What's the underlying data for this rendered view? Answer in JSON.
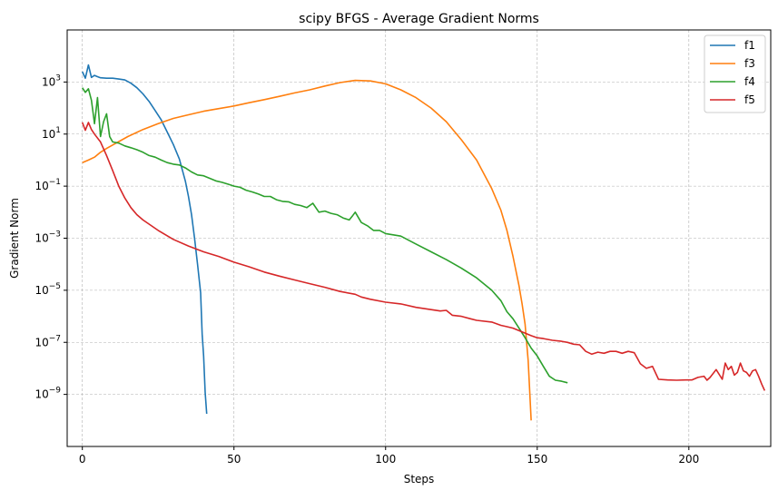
{
  "chart_data": {
    "type": "line",
    "title": "scipy BFGS - Average Gradient Norms",
    "xlabel": "Steps",
    "ylabel": "Gradient Norm",
    "xlim": [
      -5,
      227
    ],
    "ylim": [
      1e-11,
      100000.0
    ],
    "yscale": "log",
    "grid": true,
    "legend_position": "top-right",
    "x_ticks": [
      {
        "value": 0,
        "label": "0"
      },
      {
        "value": 50,
        "label": "50"
      },
      {
        "value": 100,
        "label": "100"
      },
      {
        "value": 150,
        "label": "150"
      },
      {
        "value": 200,
        "label": "200"
      }
    ],
    "y_ticks": [
      {
        "exp": 3,
        "base": "10",
        "sup": "3"
      },
      {
        "exp": 1,
        "base": "10",
        "sup": "1"
      },
      {
        "exp": -1,
        "base": "10",
        "sup": "−1"
      },
      {
        "exp": -3,
        "base": "10",
        "sup": "−3"
      },
      {
        "exp": -5,
        "base": "10",
        "sup": "−5"
      },
      {
        "exp": -7,
        "base": "10",
        "sup": "−7"
      },
      {
        "exp": -9,
        "base": "10",
        "sup": "−9"
      }
    ],
    "series": [
      {
        "name": "f1",
        "color": "#1f77b4",
        "points": [
          [
            0,
            2500
          ],
          [
            1,
            1400
          ],
          [
            2,
            4500
          ],
          [
            3,
            1500
          ],
          [
            4,
            1800
          ],
          [
            5,
            1600
          ],
          [
            6,
            1450
          ],
          [
            8,
            1400
          ],
          [
            10,
            1400
          ],
          [
            12,
            1300
          ],
          [
            14,
            1200
          ],
          [
            16,
            900
          ],
          [
            18,
            600
          ],
          [
            20,
            350
          ],
          [
            22,
            180
          ],
          [
            24,
            80
          ],
          [
            26,
            35
          ],
          [
            28,
            12
          ],
          [
            30,
            4
          ],
          [
            32,
            1.1
          ],
          [
            34,
            0.15
          ],
          [
            35,
            0.04
          ],
          [
            36,
            0.008
          ],
          [
            37,
            0.001
          ],
          [
            38,
            0.0001
          ],
          [
            39,
            8e-06
          ],
          [
            39.5,
            2e-07
          ],
          [
            40,
            3e-08
          ],
          [
            40.5,
            1.2e-09
          ],
          [
            41,
            1.8e-10
          ]
        ]
      },
      {
        "name": "f3",
        "color": "#ff7f0e",
        "points": [
          [
            0,
            0.8
          ],
          [
            2,
            1.0
          ],
          [
            4,
            1.3
          ],
          [
            6,
            2.0
          ],
          [
            8,
            2.8
          ],
          [
            10,
            3.8
          ],
          [
            15,
            8
          ],
          [
            20,
            15
          ],
          [
            25,
            25
          ],
          [
            30,
            40
          ],
          [
            35,
            55
          ],
          [
            40,
            75
          ],
          [
            45,
            95
          ],
          [
            50,
            120
          ],
          [
            55,
            160
          ],
          [
            60,
            210
          ],
          [
            65,
            280
          ],
          [
            70,
            380
          ],
          [
            75,
            500
          ],
          [
            80,
            700
          ],
          [
            85,
            950
          ],
          [
            90,
            1150
          ],
          [
            95,
            1100
          ],
          [
            100,
            850
          ],
          [
            105,
            500
          ],
          [
            110,
            250
          ],
          [
            115,
            100
          ],
          [
            120,
            30
          ],
          [
            125,
            6
          ],
          [
            130,
            1
          ],
          [
            135,
            0.08
          ],
          [
            138,
            0.012
          ],
          [
            140,
            0.002
          ],
          [
            142,
            0.0002
          ],
          [
            144,
            1.5e-05
          ],
          [
            145,
            3e-06
          ],
          [
            146,
            5e-07
          ],
          [
            147,
            2e-08
          ],
          [
            148,
            1e-10
          ]
        ]
      },
      {
        "name": "f4",
        "color": "#2ca02c",
        "points": [
          [
            0,
            600
          ],
          [
            1,
            400
          ],
          [
            2,
            550
          ],
          [
            3,
            200
          ],
          [
            4,
            25
          ],
          [
            5,
            250
          ],
          [
            6,
            8
          ],
          [
            7,
            30
          ],
          [
            8,
            60
          ],
          [
            9,
            8
          ],
          [
            10,
            5
          ],
          [
            12,
            4.5
          ],
          [
            14,
            3.5
          ],
          [
            16,
            3
          ],
          [
            18,
            2.5
          ],
          [
            20,
            2
          ],
          [
            22,
            1.5
          ],
          [
            24,
            1.3
          ],
          [
            26,
            1
          ],
          [
            28,
            0.8
          ],
          [
            30,
            0.7
          ],
          [
            32,
            0.65
          ],
          [
            34,
            0.5
          ],
          [
            36,
            0.35
          ],
          [
            38,
            0.27
          ],
          [
            40,
            0.25
          ],
          [
            42,
            0.2
          ],
          [
            44,
            0.16
          ],
          [
            46,
            0.14
          ],
          [
            48,
            0.12
          ],
          [
            50,
            0.1
          ],
          [
            52,
            0.09
          ],
          [
            54,
            0.07
          ],
          [
            56,
            0.06
          ],
          [
            58,
            0.05
          ],
          [
            60,
            0.04
          ],
          [
            62,
            0.04
          ],
          [
            64,
            0.03
          ],
          [
            66,
            0.026
          ],
          [
            68,
            0.025
          ],
          [
            70,
            0.02
          ],
          [
            72,
            0.018
          ],
          [
            74,
            0.015
          ],
          [
            76,
            0.022
          ],
          [
            78,
            0.01
          ],
          [
            80,
            0.011
          ],
          [
            82,
            0.009
          ],
          [
            84,
            0.008
          ],
          [
            86,
            0.006
          ],
          [
            88,
            0.005
          ],
          [
            89,
            0.007
          ],
          [
            90,
            0.01
          ],
          [
            92,
            0.004
          ],
          [
            94,
            0.003
          ],
          [
            96,
            0.002
          ],
          [
            98,
            0.002
          ],
          [
            100,
            0.0015
          ],
          [
            105,
            0.0012
          ],
          [
            110,
            0.0006
          ],
          [
            115,
            0.0003
          ],
          [
            120,
            0.00015
          ],
          [
            125,
            7e-05
          ],
          [
            130,
            3e-05
          ],
          [
            135,
            1e-05
          ],
          [
            138,
            4e-06
          ],
          [
            140,
            1.5e-06
          ],
          [
            142,
            8e-07
          ],
          [
            144,
            3.5e-07
          ],
          [
            146,
            1.5e-07
          ],
          [
            148,
            6e-08
          ],
          [
            150,
            3e-08
          ],
          [
            152,
            1.2e-08
          ],
          [
            154,
            5e-09
          ],
          [
            156,
            3.5e-09
          ],
          [
            158,
            3.2e-09
          ],
          [
            160,
            2.8e-09
          ]
        ]
      },
      {
        "name": "f5",
        "color": "#d62728",
        "points": [
          [
            0,
            28
          ],
          [
            1,
            14
          ],
          [
            2,
            28
          ],
          [
            3,
            15
          ],
          [
            4,
            10
          ],
          [
            6,
            5
          ],
          [
            8,
            1.5
          ],
          [
            10,
            0.4
          ],
          [
            12,
            0.1
          ],
          [
            14,
            0.035
          ],
          [
            16,
            0.015
          ],
          [
            18,
            0.008
          ],
          [
            20,
            0.005
          ],
          [
            25,
            0.002
          ],
          [
            30,
            0.0009
          ],
          [
            35,
            0.0005
          ],
          [
            40,
            0.0003
          ],
          [
            45,
            0.0002
          ],
          [
            50,
            0.00012
          ],
          [
            55,
            8e-05
          ],
          [
            60,
            5e-05
          ],
          [
            65,
            3.5e-05
          ],
          [
            70,
            2.5e-05
          ],
          [
            75,
            1.8e-05
          ],
          [
            80,
            1.3e-05
          ],
          [
            85,
            9e-06
          ],
          [
            90,
            7e-06
          ],
          [
            92,
            5.5e-06
          ],
          [
            95,
            4.5e-06
          ],
          [
            100,
            3.5e-06
          ],
          [
            105,
            3e-06
          ],
          [
            110,
            2.2e-06
          ],
          [
            115,
            1.8e-06
          ],
          [
            118,
            1.6e-06
          ],
          [
            120,
            1.7e-06
          ],
          [
            122,
            1.1e-06
          ],
          [
            125,
            1e-06
          ],
          [
            128,
            8e-07
          ],
          [
            130,
            7e-07
          ],
          [
            135,
            6e-07
          ],
          [
            138,
            4.5e-07
          ],
          [
            140,
            4e-07
          ],
          [
            142,
            3.5e-07
          ],
          [
            145,
            2.5e-07
          ],
          [
            148,
            1.8e-07
          ],
          [
            150,
            1.5e-07
          ],
          [
            152,
            1.4e-07
          ],
          [
            155,
            1.2e-07
          ],
          [
            158,
            1.1e-07
          ],
          [
            160,
            1e-07
          ],
          [
            162,
            8.5e-08
          ],
          [
            164,
            8e-08
          ],
          [
            166,
            4.5e-08
          ],
          [
            168,
            3.5e-08
          ],
          [
            170,
            4.2e-08
          ],
          [
            172,
            3.8e-08
          ],
          [
            174,
            4.5e-08
          ],
          [
            176,
            4.5e-08
          ],
          [
            178,
            3.8e-08
          ],
          [
            180,
            4.5e-08
          ],
          [
            182,
            4e-08
          ],
          [
            184,
            1.5e-08
          ],
          [
            186,
            1e-08
          ],
          [
            188,
            1.2e-08
          ],
          [
            190,
            3.8e-09
          ],
          [
            193,
            3.6e-09
          ],
          [
            196,
            3.5e-09
          ],
          [
            199,
            3.6e-09
          ],
          [
            201,
            3.6e-09
          ],
          [
            203,
            4.5e-09
          ],
          [
            205,
            5e-09
          ],
          [
            206,
            3.5e-09
          ],
          [
            207,
            4.5e-09
          ],
          [
            209,
            9e-09
          ],
          [
            211,
            3.8e-09
          ],
          [
            212,
            1.6e-08
          ],
          [
            213,
            9e-09
          ],
          [
            214,
            1.2e-08
          ],
          [
            215,
            5.5e-09
          ],
          [
            216,
            7e-09
          ],
          [
            217,
            1.6e-08
          ],
          [
            218,
            8e-09
          ],
          [
            219,
            7e-09
          ],
          [
            220,
            5e-09
          ],
          [
            221,
            8e-09
          ],
          [
            222,
            9e-09
          ],
          [
            223,
            5e-09
          ],
          [
            224,
            2.5e-09
          ],
          [
            225,
            1.4e-09
          ]
        ]
      }
    ]
  }
}
